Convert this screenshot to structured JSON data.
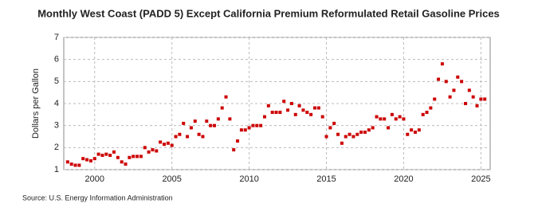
{
  "chart_data": {
    "type": "scatter",
    "title": "Monthly West Coast (PADD 5) Except California Premium Reformulated Retail Gasoline Prices",
    "y_label": "Dollars per Gallon",
    "source": "Source: U.S. Energy Information Administration",
    "color": "#cc0000",
    "grid": true,
    "xlim": [
      1998,
      2025.6
    ],
    "ylim": [
      1,
      7
    ],
    "xticks": [
      2000,
      2005,
      2010,
      2015,
      2020,
      2025
    ],
    "yticks": [
      1,
      2,
      3,
      4,
      5,
      6,
      7
    ],
    "x": [
      1998.25,
      1998.5,
      1998.75,
      1999,
      1999.25,
      1999.5,
      1999.75,
      2000,
      2000.25,
      2000.5,
      2000.75,
      2001,
      2001.25,
      2001.5,
      2001.75,
      2002,
      2002.25,
      2002.5,
      2002.75,
      2003,
      2003.25,
      2003.5,
      2003.75,
      2004,
      2004.25,
      2004.5,
      2004.75,
      2005,
      2005.25,
      2005.5,
      2005.75,
      2006,
      2006.25,
      2006.5,
      2006.75,
      2007,
      2007.25,
      2007.5,
      2007.75,
      2008,
      2008.25,
      2008.5,
      2008.75,
      2009,
      2009.25,
      2009.5,
      2009.75,
      2010,
      2010.25,
      2010.5,
      2010.75,
      2011,
      2011.25,
      2011.5,
      2011.75,
      2012,
      2012.25,
      2012.5,
      2012.75,
      2013,
      2013.25,
      2013.5,
      2013.75,
      2014,
      2014.25,
      2014.5,
      2014.75,
      2015,
      2015.25,
      2015.5,
      2015.75,
      2016,
      2016.25,
      2016.5,
      2016.75,
      2017,
      2017.25,
      2017.5,
      2017.75,
      2018,
      2018.25,
      2018.5,
      2018.75,
      2019,
      2019.25,
      2019.5,
      2019.75,
      2020,
      2020.25,
      2020.5,
      2020.75,
      2021,
      2021.25,
      2021.5,
      2021.75,
      2022,
      2022.25,
      2022.5,
      2022.75,
      2023,
      2023.25,
      2023.5,
      2023.75,
      2024,
      2024.25,
      2024.5,
      2024.75,
      2025,
      2025.25
    ],
    "values": [
      1.35,
      1.25,
      1.2,
      1.2,
      1.5,
      1.45,
      1.4,
      1.5,
      1.7,
      1.65,
      1.7,
      1.65,
      1.8,
      1.55,
      1.35,
      1.25,
      1.55,
      1.6,
      1.6,
      1.6,
      2.0,
      1.8,
      1.9,
      1.85,
      2.25,
      2.15,
      2.2,
      2.1,
      2.5,
      2.6,
      3.1,
      2.5,
      2.9,
      3.2,
      2.6,
      2.5,
      3.2,
      3.0,
      3.0,
      3.3,
      3.8,
      4.3,
      3.3,
      1.9,
      2.3,
      2.8,
      2.8,
      2.9,
      3.0,
      3.0,
      3.0,
      3.4,
      3.9,
      3.6,
      3.6,
      3.6,
      4.1,
      3.7,
      4.0,
      3.5,
      3.9,
      3.7,
      3.6,
      3.5,
      3.8,
      3.8,
      3.4,
      2.5,
      2.9,
      3.1,
      2.6,
      2.2,
      2.5,
      2.6,
      2.5,
      2.6,
      2.7,
      2.7,
      2.8,
      2.9,
      3.4,
      3.3,
      3.3,
      2.9,
      3.5,
      3.3,
      3.4,
      3.3,
      2.6,
      2.8,
      2.7,
      2.8,
      3.5,
      3.6,
      3.8,
      4.2,
      5.1,
      5.8,
      5.0,
      4.3,
      4.6,
      5.2,
      5.0,
      4.0,
      4.6,
      4.3,
      3.9,
      4.2,
      4.2
    ]
  }
}
